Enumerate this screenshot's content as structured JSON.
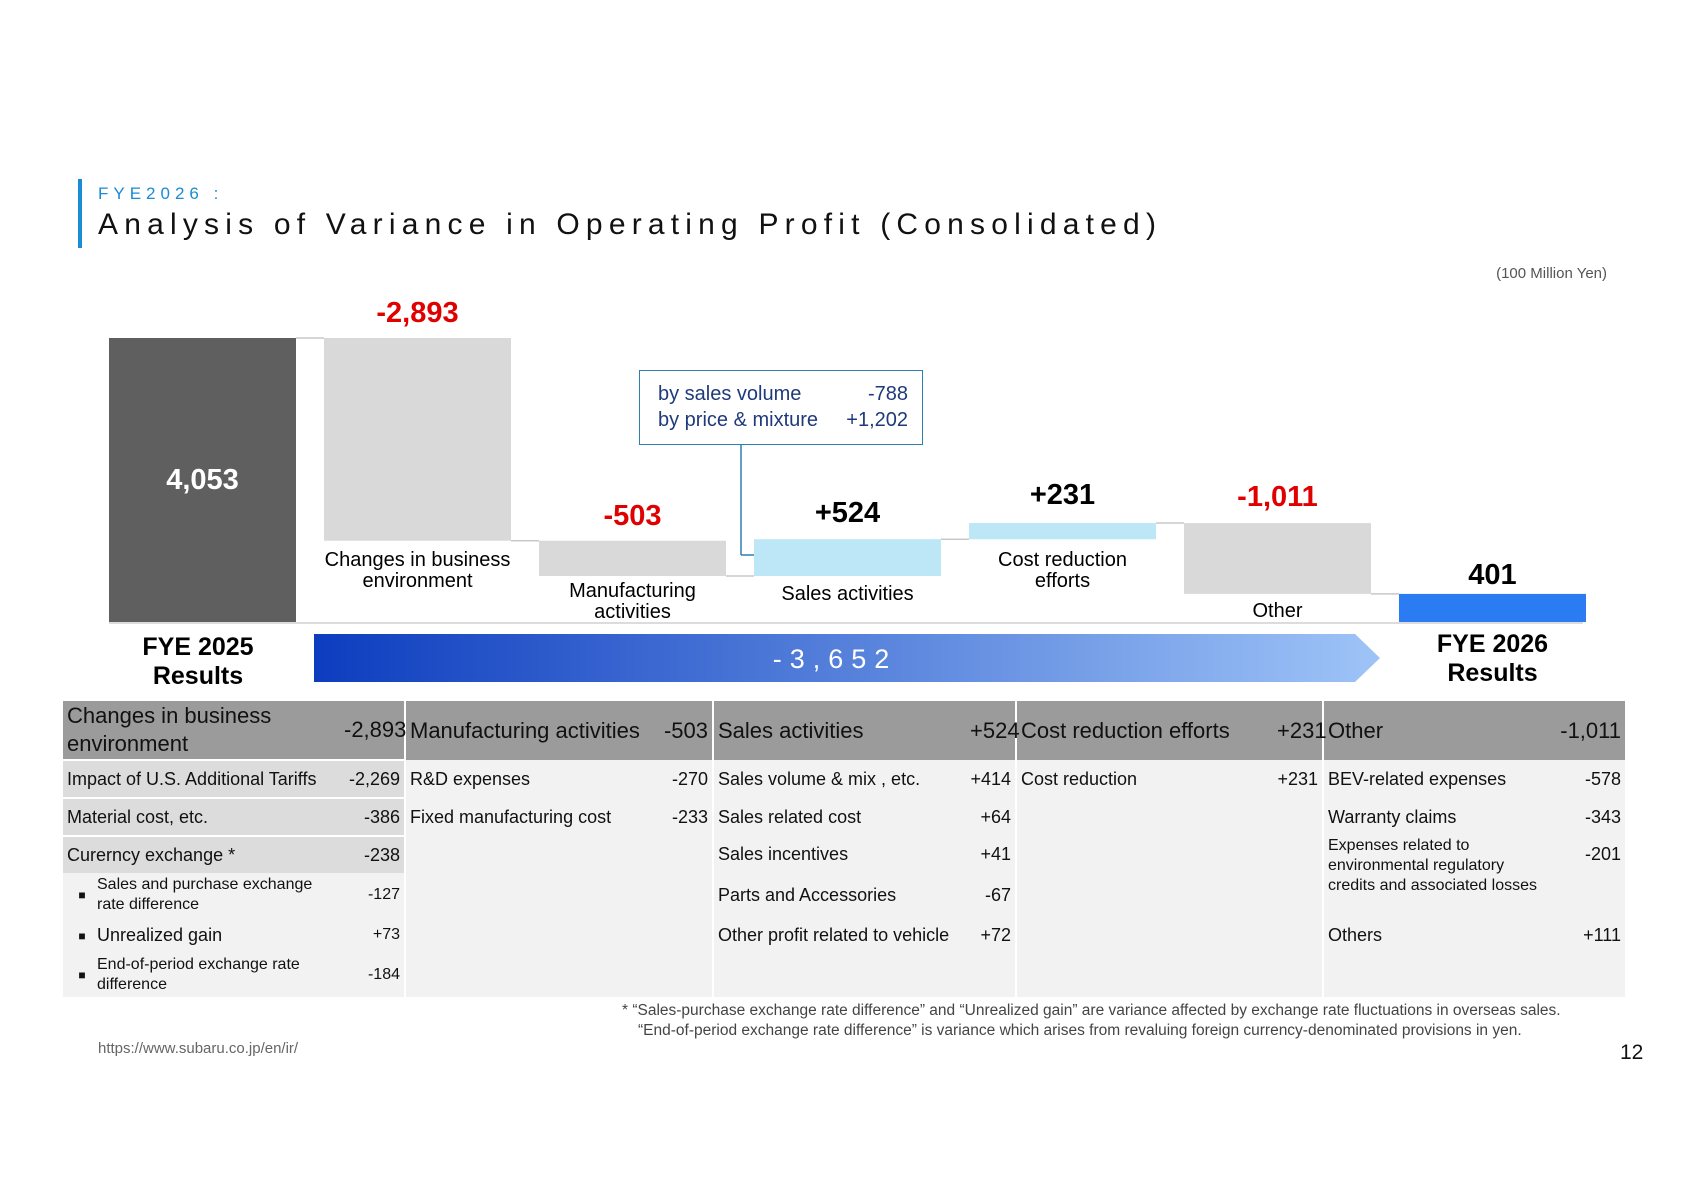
{
  "header": {
    "subtitle": "FYE2026 :",
    "title": "Analysis of Variance in Operating Profit (Consolidated)",
    "unit": "(100 Million Yen)"
  },
  "colors": {
    "start_bar": "#5f5f5f",
    "negative_bar": "#d9d9d9",
    "positive_bar": "#bde6f7",
    "end_bar": "#2b7bf3",
    "negative_label": "#e00000",
    "accent": "#1a8bd6"
  },
  "chart_data": {
    "type": "bar",
    "subtype": "waterfall",
    "categories": [
      "FYE 2025 Results",
      "Changes in business environment",
      "Manufacturing activities",
      "Sales activities",
      "Cost reduction efforts",
      "Other",
      "FYE 2026 Results"
    ],
    "start": {
      "label_line1": "FYE 2025",
      "label_line2": "Results",
      "value": 4053,
      "value_label": "4,053"
    },
    "steps": [
      {
        "label": [
          "Changes in business",
          "environment"
        ],
        "value": -2893,
        "value_label": "-2,893"
      },
      {
        "label": [
          "Manufacturing",
          "activities"
        ],
        "value": -503,
        "value_label": "-503"
      },
      {
        "label": [
          "Sales activities"
        ],
        "value": 524,
        "value_label": "+524"
      },
      {
        "label": [
          "Cost reduction",
          "efforts"
        ],
        "value": 231,
        "value_label": "+231"
      },
      {
        "label": [
          "Other"
        ],
        "value": -1011,
        "value_label": "-1,011"
      }
    ],
    "end": {
      "label_line1": "FYE 2026",
      "label_line2": "Results",
      "value": 401,
      "value_label": "401"
    },
    "total_change_label": "-3,652",
    "callout": [
      {
        "label": "by sales volume",
        "value": "-788"
      },
      {
        "label": "by price & mixture",
        "value": "+1,202"
      }
    ]
  },
  "table": {
    "columns": [
      {
        "title": "Changes in business environment",
        "value": "-2,893"
      },
      {
        "title": "Manufacturing activities",
        "value": "-503"
      },
      {
        "title": "Sales activities",
        "value": "+524"
      },
      {
        "title": "Cost reduction efforts",
        "value": "+231"
      },
      {
        "title": "Other",
        "value": "-1,011"
      }
    ],
    "business": [
      {
        "label": "Impact of U.S. Additional Tariffs",
        "value": "-2,269"
      },
      {
        "label": "Material cost, etc.",
        "value": "-386"
      },
      {
        "label": "Curernсy exchange *",
        "value": "-238"
      }
    ],
    "currency_sub": [
      {
        "label": "Sales and purchase exchange rate difference",
        "value": "-127"
      },
      {
        "label": "Unrealized gain",
        "value": "+73"
      },
      {
        "label": "End-of-period exchange rate difference",
        "value": "-184"
      }
    ],
    "manufacturing": [
      {
        "label": "R&D expenses",
        "value": "-270"
      },
      {
        "label": "Fixed manufacturing cost",
        "value": "-233"
      }
    ],
    "sales": [
      {
        "label": "Sales volume & mix , etc.",
        "value": "+414"
      },
      {
        "label": "Sales related cost",
        "value": "+64"
      },
      {
        "label": "Sales incentives",
        "value": "+41"
      },
      {
        "label": "Parts and Accessories",
        "value": "-67"
      },
      {
        "label": "Other profit related to vehicle",
        "value": "+72"
      }
    ],
    "cost": [
      {
        "label": "Cost reduction",
        "value": "+231"
      }
    ],
    "other": [
      {
        "label": "BEV-related expenses",
        "value": "-578"
      },
      {
        "label": "Warranty claims",
        "value": "-343"
      },
      {
        "label": "Expenses related to environmental regulatory credits and associated losses",
        "value": "-201"
      },
      {
        "label": "Others",
        "value": "+111"
      }
    ]
  },
  "footnote": {
    "line1": "* “Sales-purchase exchange rate difference” and “Unrealized gain” are variance affected by exchange rate fluctuations in overseas sales.",
    "line2": "“End-of-period exchange rate difference” is variance which arises from revaluing foreign currency-denominated provisions in yen."
  },
  "url": "https://www.subaru.co.jp/en/ir/",
  "page_number": "12"
}
